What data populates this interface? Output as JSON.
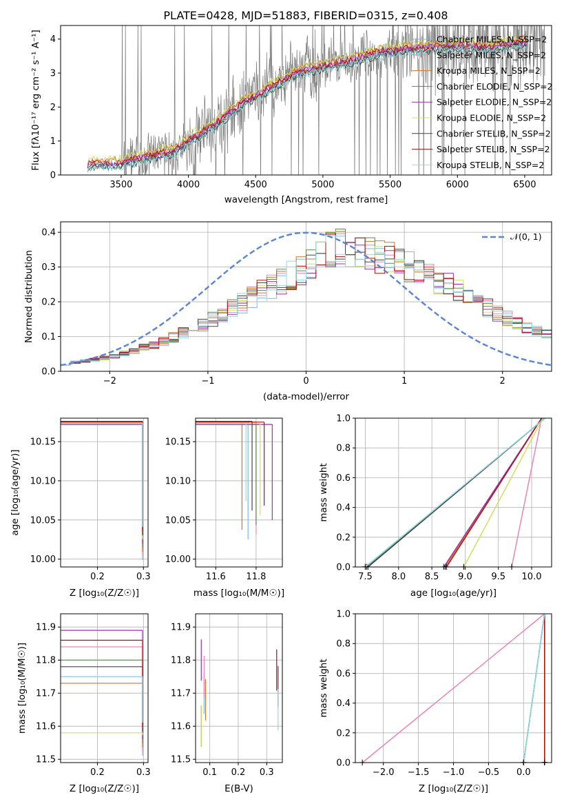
{
  "title": "PLATE=0428, MJD=51883, FIBERID=0315, z=0.408",
  "colors": {
    "series": [
      "#7bb8e0",
      "#e884b8",
      "#d2741f",
      "#5a8a4a",
      "#9c2fb5",
      "#cfe060",
      "#444444",
      "#b01010",
      "#8fd8e6"
    ],
    "data": "#7a7a7a",
    "gauss": "#5b86d6",
    "grid": "#b0b0b0"
  },
  "spectrum": {
    "xlabel": "wavelength [Angstrom, rest frame]",
    "ylabel": "Flux [fλ10⁻¹⁷ erg cm⁻² s⁻¹ A⁻¹]",
    "xticks": [
      "3500",
      "4000",
      "4500",
      "5000",
      "5500",
      "6000",
      "6500"
    ],
    "yticks": [
      "0",
      "1",
      "2",
      "3",
      "4"
    ],
    "legend": [
      "Chabrier MILES, N_SSP=2",
      "Salpeter MILES, N_SSP=2",
      "Kroupa MILES, N_SSP=2",
      "Chabrier ELODIE, N_SSP=2",
      "Salpeter ELODIE, N_SSP=2",
      "Kroupa ELODIE, N_SSP=2",
      "Chabrier STELIB, N_SSP=2",
      "Salpeter STELIB, N_SSP=2",
      "Kroupa STELIB, N_SSP=2"
    ]
  },
  "residuals": {
    "xlabel": "(data-model)/error",
    "ylabel": "Normed distribution",
    "xticks": [
      "−2",
      "−1",
      "0",
      "1",
      "2"
    ],
    "yticks": [
      "0.0",
      "0.1",
      "0.2",
      "0.3",
      "0.4"
    ],
    "legend": "𝒩(0, 1)"
  },
  "panels": {
    "age_z": {
      "xlabel": "Z [log₁₀(Z/Z☉)]",
      "ylabel": "age  [log₁₀(age/yr)]",
      "xticks": [
        "0.2",
        "0.3"
      ],
      "yticks": [
        "10.00",
        "10.05",
        "10.10",
        "10.15"
      ]
    },
    "age_mass": {
      "xlabel": "mass [log₁₀(M/M☉)]",
      "xticks": [
        "11.6",
        "11.8"
      ],
      "yticks": [
        "10.00",
        "10.05",
        "10.10",
        "10.15"
      ]
    },
    "mw_age": {
      "xlabel": "age  [log₁₀(age/yr)]",
      "ylabel": "mass weight",
      "xticks": [
        "7.5",
        "8.0",
        "8.5",
        "9.0",
        "9.5",
        "10.0"
      ],
      "yticks": [
        "0.0",
        "0.2",
        "0.4",
        "0.6",
        "0.8",
        "1.0"
      ]
    },
    "mass_z": {
      "xlabel": "Z [log₁₀(Z/Z☉)]",
      "ylabel": "mass [log₁₀(M/M☉)]",
      "xticks": [
        "0.2",
        "0.3"
      ],
      "yticks": [
        "11.5",
        "11.6",
        "11.7",
        "11.8",
        "11.9"
      ]
    },
    "mass_ebv": {
      "xlabel": "E(B-V)",
      "xticks": [
        "0.1",
        "0.2",
        "0.3"
      ],
      "yticks": [
        "11.5",
        "11.6",
        "11.7",
        "11.8",
        "11.9"
      ]
    },
    "mw_z": {
      "xlabel": "Z [log₁₀(Z/Z☉)]",
      "ylabel": "mass weight",
      "xticks": [
        "−2.0",
        "−1.5",
        "−1.0",
        "−0.5",
        "0.0"
      ],
      "yticks": [
        "0.0",
        "0.2",
        "0.4",
        "0.6",
        "0.8",
        "1.0"
      ]
    }
  },
  "chart_data": [
    {
      "type": "line",
      "title": "PLATE=0428, MJD=51883, FIBERID=0315, z=0.408",
      "xlabel": "wavelength [Angstrom, rest frame]",
      "ylabel": "Flux [fλ10⁻¹⁷ erg cm⁻² s⁻¹ A⁻¹]",
      "xlim": [
        3050,
        6700
      ],
      "ylim": [
        0,
        4.4
      ],
      "model_continuum": {
        "x": [
          3250,
          3500,
          3700,
          3900,
          4000,
          4200,
          4400,
          4600,
          4800,
          5000,
          5200,
          5400,
          5600,
          5800,
          6000,
          6200,
          6400,
          6500
        ],
        "y": [
          0.3,
          0.35,
          0.55,
          0.7,
          1.0,
          1.5,
          2.1,
          2.55,
          3.0,
          3.2,
          3.35,
          3.6,
          3.7,
          3.75,
          3.8,
          3.75,
          3.85,
          3.9
        ]
      },
      "series": [
        {
          "name": "Chabrier MILES, N_SSP=2",
          "offset": -0.05
        },
        {
          "name": "Salpeter MILES, N_SSP=2",
          "offset": 0.05
        },
        {
          "name": "Kroupa MILES, N_SSP=2",
          "offset": 0.1
        },
        {
          "name": "Chabrier ELODIE, N_SSP=2",
          "offset": -0.08
        },
        {
          "name": "Salpeter ELODIE, N_SSP=2",
          "offset": 0.0
        },
        {
          "name": "Kroupa ELODIE, N_SSP=2",
          "offset": 0.15
        },
        {
          "name": "Chabrier STELIB, N_SSP=2",
          "offset": -0.1
        },
        {
          "name": "Salpeter STELIB, N_SSP=2",
          "offset": 0.02
        },
        {
          "name": "Kroupa STELIB, N_SSP=2",
          "offset": -0.12
        }
      ]
    },
    {
      "type": "line",
      "xlabel": "(data-model)/error",
      "ylabel": "Normed distribution",
      "xlim": [
        -2.5,
        2.5
      ],
      "ylim": [
        0,
        0.43
      ],
      "gaussian": {
        "name": "𝒩(0, 1)",
        "mean": 0,
        "sigma": 1
      },
      "histogram_bins": {
        "start": -2.5,
        "width": 0.1
      },
      "histogram_envelope": {
        "x": [
          -2.5,
          -2.0,
          -1.5,
          -1.0,
          -0.5,
          0.0,
          0.3,
          0.6,
          0.9,
          1.2,
          1.5,
          2.0,
          2.5
        ],
        "y": [
          0.02,
          0.04,
          0.08,
          0.14,
          0.22,
          0.3,
          0.36,
          0.34,
          0.32,
          0.28,
          0.24,
          0.16,
          0.1
        ]
      }
    },
    {
      "type": "scatter",
      "xlabel": "Z [log₁₀(Z/Z☉)]",
      "ylabel": "age  [log₁₀(age/yr)]",
      "xlim": [
        0.12,
        0.31
      ],
      "ylim": [
        9.99,
        10.18
      ],
      "points": [
        {
          "x": 0.298,
          "y": 10.175
        },
        {
          "x": 0.298,
          "y": 10.176
        },
        {
          "x": 0.298,
          "y": 10.174
        },
        {
          "x": 0.298,
          "y": 10.175
        },
        {
          "x": 0.298,
          "y": 10.172
        },
        {
          "x": 0.298,
          "y": 10.173
        },
        {
          "x": 0.298,
          "y": 10.176
        },
        {
          "x": 0.298,
          "y": 10.175
        },
        {
          "x": 0.298,
          "y": 10.174
        }
      ]
    },
    {
      "type": "scatter",
      "xlabel": "mass [log₁₀(M/M☉)]",
      "xlim": [
        11.5,
        11.93
      ],
      "ylim": [
        9.99,
        10.18
      ],
      "points": [
        {
          "x": 11.76,
          "y": 10.175
        },
        {
          "x": 11.8,
          "y": 10.175
        },
        {
          "x": 11.73,
          "y": 10.175
        },
        {
          "x": 11.8,
          "y": 10.175
        },
        {
          "x": 11.88,
          "y": 10.172
        },
        {
          "x": 11.82,
          "y": 10.173
        },
        {
          "x": 11.78,
          "y": 10.176
        },
        {
          "x": 11.84,
          "y": 10.175
        },
        {
          "x": 11.75,
          "y": 10.174
        }
      ]
    },
    {
      "type": "line",
      "xlabel": "age  [log₁₀(age/yr)]",
      "ylabel": "mass weight",
      "xlim": [
        7.35,
        10.3
      ],
      "ylim": [
        0,
        1
      ],
      "series": [
        {
          "name": "Chabrier MILES, N_SSP=2",
          "x": [
            7.5,
            10.2
          ],
          "y": [
            0,
            1
          ]
        },
        {
          "name": "Salpeter MILES, N_SSP=2",
          "x": [
            9.7,
            10.15
          ],
          "y": [
            0,
            1
          ]
        },
        {
          "name": "Kroupa MILES, N_SSP=2",
          "x": [
            8.7,
            10.15
          ],
          "y": [
            0,
            1
          ]
        },
        {
          "name": "Chabrier ELODIE, N_SSP=2",
          "x": [
            7.52,
            10.2
          ],
          "y": [
            0,
            1
          ]
        },
        {
          "name": "Salpeter ELODIE, N_SSP=2",
          "x": [
            8.68,
            10.15
          ],
          "y": [
            0,
            1
          ]
        },
        {
          "name": "Kroupa ELODIE, N_SSP=2",
          "x": [
            8.98,
            10.17
          ],
          "y": [
            0,
            1
          ]
        },
        {
          "name": "Chabrier STELIB, N_SSP=2",
          "x": [
            7.54,
            10.2
          ],
          "y": [
            0,
            1
          ]
        },
        {
          "name": "Salpeter STELIB, N_SSP=2",
          "x": [
            8.72,
            10.15
          ],
          "y": [
            0,
            1
          ]
        },
        {
          "name": "Kroupa STELIB, N_SSP=2",
          "x": [
            7.5,
            10.2
          ],
          "y": [
            0,
            1
          ]
        }
      ]
    },
    {
      "type": "scatter",
      "xlabel": "Z [log₁₀(Z/Z☉)]",
      "ylabel": "mass [log₁₀(M/M☉)]",
      "xlim": [
        0.12,
        0.31
      ],
      "ylim": [
        11.49,
        11.94
      ],
      "points": [
        {
          "x": 0.298,
          "y": 11.75
        },
        {
          "x": 0.298,
          "y": 11.84
        },
        {
          "x": 0.298,
          "y": 11.73
        },
        {
          "x": 0.298,
          "y": 11.8
        },
        {
          "x": 0.298,
          "y": 11.89
        },
        {
          "x": 0.298,
          "y": 11.58
        },
        {
          "x": 0.298,
          "y": 11.78
        },
        {
          "x": 0.298,
          "y": 11.86
        },
        {
          "x": 0.298,
          "y": 11.75
        }
      ]
    },
    {
      "type": "scatter",
      "xlabel": "E(B-V)",
      "xlim": [
        0.05,
        0.355
      ],
      "ylim": [
        11.49,
        11.94
      ],
      "points": [
        {
          "x": 0.08,
          "y": 11.7
        },
        {
          "x": 0.08,
          "y": 11.75
        },
        {
          "x": 0.085,
          "y": 11.68
        },
        {
          "x": 0.07,
          "y": 11.6
        },
        {
          "x": 0.07,
          "y": 11.8
        },
        {
          "x": 0.07,
          "y": 11.6
        },
        {
          "x": 0.34,
          "y": 11.72
        },
        {
          "x": 0.335,
          "y": 11.77
        },
        {
          "x": 0.34,
          "y": 11.65
        }
      ]
    },
    {
      "type": "line",
      "xlabel": "Z [log₁₀(Z/Z☉)]",
      "ylabel": "mass weight",
      "xlim": [
        -2.4,
        0.4
      ],
      "ylim": [
        0,
        1
      ],
      "series": [
        {
          "name": "Chabrier MILES, N_SSP=2",
          "x": [
            0.0,
            0.3
          ],
          "y": [
            0,
            1
          ]
        },
        {
          "name": "Salpeter MILES, N_SSP=2",
          "x": [
            -2.3,
            0.3
          ],
          "y": [
            0,
            1
          ]
        },
        {
          "name": "Kroupa MILES, N_SSP=2",
          "x": [
            0.3,
            0.3
          ],
          "y": [
            0,
            1
          ]
        },
        {
          "name": "Chabrier ELODIE, N_SSP=2",
          "x": [
            0.3,
            0.3
          ],
          "y": [
            0,
            1
          ]
        },
        {
          "name": "Salpeter ELODIE, N_SSP=2",
          "x": [
            0.3,
            0.3
          ],
          "y": [
            0,
            1
          ]
        },
        {
          "name": "Kroupa ELODIE, N_SSP=2",
          "x": [
            0.3,
            0.3
          ],
          "y": [
            0,
            1
          ]
        },
        {
          "name": "Chabrier STELIB, N_SSP=2",
          "x": [
            0.0,
            0.3
          ],
          "y": [
            0,
            1
          ]
        },
        {
          "name": "Salpeter STELIB, N_SSP=2",
          "x": [
            0.3,
            0.3
          ],
          "y": [
            0,
            1
          ]
        },
        {
          "name": "Kroupa STELIB, N_SSP=2",
          "x": [
            0.0,
            0.3
          ],
          "y": [
            0,
            1
          ]
        }
      ]
    }
  ]
}
